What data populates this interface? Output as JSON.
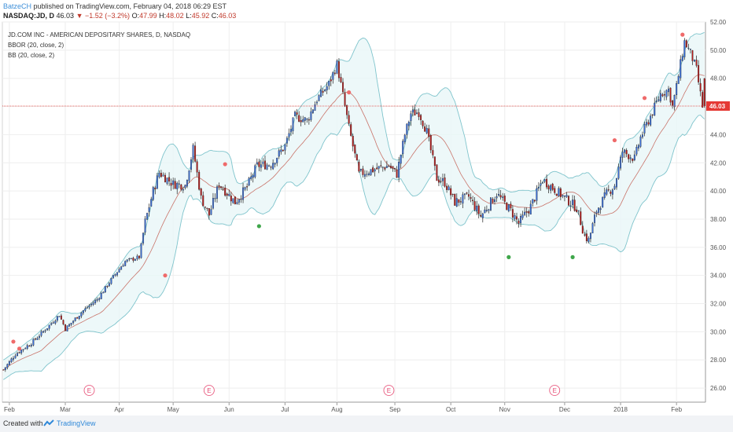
{
  "header": {
    "author": "BatzeCH",
    "published_text": "published on TradingView.com, February 04, 2018 06:29 EST"
  },
  "symbol_line": {
    "symbol": "NASDAQ:JD, D",
    "last": "46.03",
    "change_arrow": "▼",
    "change": "−1.52 (−3.2%)",
    "o_label": "O:",
    "o_value": "47.99",
    "h_label": "H:",
    "h_value": "48.02",
    "l_label": "L:",
    "l_value": "45.92",
    "c_label": "C:",
    "c_value": "46.03"
  },
  "legend": {
    "title": "JD.COM INC - AMERICAN DEPOSITARY SHARES, D, NASDAQ",
    "bbor": "BBOR (20, close, 2)",
    "bb": "BB (20, close, 2)"
  },
  "footer": {
    "created_with": "Created with",
    "brand": "TradingView"
  },
  "colors": {
    "up": "#3b6fd8",
    "down": "#b71c1c",
    "band": "#7fc4cc",
    "basis": "#c9746a",
    "price_line": "#e53935",
    "marker_top": "#ef6a6a",
    "marker_bottom": "#3fa64a",
    "earnings": "#e64a73"
  },
  "chart_data": {
    "type": "candlestick",
    "y_axis": {
      "min": 25,
      "max": 52,
      "ticks": [
        "26.00",
        "28.00",
        "30.00",
        "32.00",
        "34.00",
        "36.00",
        "38.00",
        "40.00",
        "42.00",
        "44.00",
        "46.00",
        "48.00",
        "50.00",
        "52.00"
      ]
    },
    "x_axis": {
      "ticks": [
        "Feb",
        "Mar",
        "Apr",
        "May",
        "Jun",
        "Jul",
        "Aug",
        "Sep",
        "Oct",
        "Nov",
        "Dec",
        "2018",
        "Feb"
      ],
      "tick_pos": [
        3,
        31,
        58,
        85,
        113,
        141,
        167,
        196,
        224,
        251,
        281,
        309,
        337
      ]
    },
    "last_price_label": "46.03",
    "last_price": 46.03,
    "earnings_label": "E",
    "earnings_pos": [
      43,
      103,
      193,
      276
    ],
    "anchors": [
      [
        0,
        27.3
      ],
      [
        6,
        28.4
      ],
      [
        14,
        29.2
      ],
      [
        22,
        30.3
      ],
      [
        28,
        31.2
      ],
      [
        31,
        30.2
      ],
      [
        40,
        31.5
      ],
      [
        47,
        32.3
      ],
      [
        55,
        33.9
      ],
      [
        61,
        35.0
      ],
      [
        68,
        35.3
      ],
      [
        71,
        37.8
      ],
      [
        75,
        40.0
      ],
      [
        78,
        41.3
      ],
      [
        85,
        40.5
      ],
      [
        91,
        40.4
      ],
      [
        95,
        43.0
      ],
      [
        99,
        39.5
      ],
      [
        103,
        38.3
      ],
      [
        108,
        40.5
      ],
      [
        116,
        39.2
      ],
      [
        122,
        40.3
      ],
      [
        127,
        41.8
      ],
      [
        134,
        41.9
      ],
      [
        141,
        43.2
      ],
      [
        146,
        45.3
      ],
      [
        152,
        45.0
      ],
      [
        157,
        46.5
      ],
      [
        163,
        47.6
      ],
      [
        167,
        49.0
      ],
      [
        170,
        46.8
      ],
      [
        173,
        44.5
      ],
      [
        178,
        41.2
      ],
      [
        185,
        41.5
      ],
      [
        193,
        41.8
      ],
      [
        197,
        41.2
      ],
      [
        201,
        44.0
      ],
      [
        204,
        45.5
      ],
      [
        208,
        45.6
      ],
      [
        212,
        44.2
      ],
      [
        217,
        40.9
      ],
      [
        221,
        40.6
      ],
      [
        226,
        39.2
      ],
      [
        233,
        39.6
      ],
      [
        239,
        38.2
      ],
      [
        247,
        39.8
      ],
      [
        254,
        38.6
      ],
      [
        258,
        37.7
      ],
      [
        264,
        38.9
      ],
      [
        270,
        40.8
      ],
      [
        276,
        40.1
      ],
      [
        282,
        39.4
      ],
      [
        287,
        38.8
      ],
      [
        291,
        36.8
      ],
      [
        293,
        36.5
      ],
      [
        297,
        38.6
      ],
      [
        302,
        39.8
      ],
      [
        306,
        40.4
      ],
      [
        310,
        42.8
      ],
      [
        316,
        42.3
      ],
      [
        319,
        43.8
      ],
      [
        324,
        45.3
      ],
      [
        329,
        46.9
      ],
      [
        333,
        47.2
      ],
      [
        335,
        46.0
      ],
      [
        337,
        47.4
      ],
      [
        341,
        50.6
      ],
      [
        344,
        49.8
      ],
      [
        347,
        48.6
      ],
      [
        350,
        46.0
      ]
    ],
    "markers_top": [
      [
        5,
        29.3
      ],
      [
        8,
        28.8
      ],
      [
        81,
        34.0
      ],
      [
        111,
        41.9
      ],
      [
        173,
        47.0
      ],
      [
        306,
        43.6
      ],
      [
        321,
        46.6
      ],
      [
        340,
        51.1
      ]
    ],
    "markers_bottom": [
      [
        128,
        37.5
      ],
      [
        253,
        35.3
      ],
      [
        285,
        35.3
      ]
    ]
  }
}
